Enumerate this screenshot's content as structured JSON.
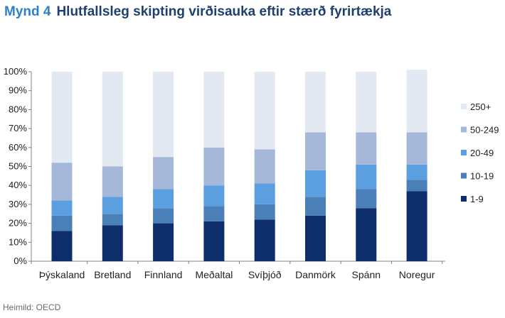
{
  "header": {
    "figure_number": "Mynd 4",
    "title": "Hlutfallsleg skipting virðisauka eftir stærð fyrirtækja"
  },
  "source": "Heimild: OECD",
  "chart_data": {
    "type": "bar",
    "stacked": true,
    "categories": [
      "Þýskaland",
      "Bretland",
      "Finnland",
      "Meðaltal",
      "Svíþjóð",
      "Danmörk",
      "Spánn",
      "Noregur"
    ],
    "series": [
      {
        "name": "1-9",
        "color": "#0d2e6b",
        "values": [
          16,
          19,
          20,
          21,
          22,
          24,
          28,
          37
        ]
      },
      {
        "name": "10-19",
        "color": "#4a7fb7",
        "values": [
          8,
          6,
          8,
          8,
          8,
          10,
          10,
          6
        ]
      },
      {
        "name": "20-49",
        "color": "#5b9fe0",
        "values": [
          8,
          9,
          10,
          11,
          11,
          14,
          13,
          8
        ]
      },
      {
        "name": "50-249",
        "color": "#a5b8da",
        "values": [
          20,
          16,
          17,
          20,
          18,
          20,
          17,
          17
        ]
      },
      {
        "name": "250+",
        "color": "#e3e9f3",
        "values": [
          48,
          50,
          45,
          40,
          41,
          32,
          32,
          33
        ]
      }
    ],
    "yticks": [
      "0%",
      "10%",
      "20%",
      "30%",
      "40%",
      "50%",
      "60%",
      "70%",
      "80%",
      "90%",
      "100%"
    ],
    "ylim": [
      0,
      100
    ],
    "legend_position": "right",
    "grid": false
  }
}
